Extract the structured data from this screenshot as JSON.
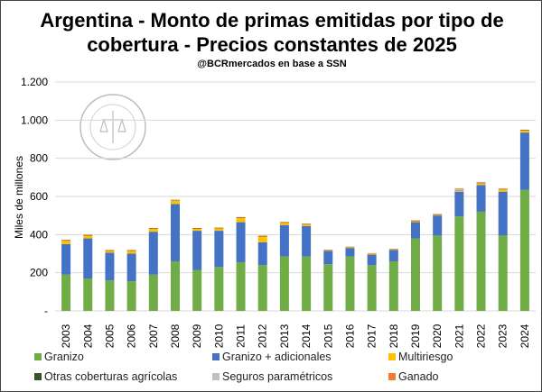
{
  "chart_data": {
    "type": "bar",
    "stacked": true,
    "title": "Argentina - Monto de primas emitidas  por tipo de cobertura - Precios constantes de 2025",
    "title_lines": [
      "Argentina - Monto de primas emitidas  por tipo de",
      "cobertura - Precios constantes de 2025"
    ],
    "subtitle": "@BCRmercados en base a SSN",
    "ylabel": "Miles de millones",
    "xlabel": "",
    "ylim": [
      0,
      1200
    ],
    "yticks": [
      0,
      200,
      400,
      600,
      800,
      1000,
      1200
    ],
    "ytick_labels": [
      "-",
      "200",
      "400",
      "600",
      "800",
      "1.000",
      "1.200"
    ],
    "grid": true,
    "legend_position": "bottom",
    "watermark": "BOLSA DE COMERCIO DE ROSARIO",
    "categories": [
      "2003",
      "2004",
      "2005",
      "2006",
      "2007",
      "2008",
      "2009",
      "2010",
      "2011",
      "2012",
      "2013",
      "2014",
      "2015",
      "2016",
      "2017",
      "2018",
      "2019",
      "2020",
      "2021",
      "2022",
      "2023",
      "2024"
    ],
    "series": [
      {
        "name": "Granizo",
        "color": "#70ad47",
        "values": [
          190,
          170,
          160,
          155,
          190,
          260,
          215,
          230,
          255,
          240,
          285,
          285,
          245,
          285,
          240,
          260,
          380,
          395,
          495,
          520,
          395,
          635
        ]
      },
      {
        "name": "Granizo + adicionales",
        "color": "#4472c4",
        "values": [
          160,
          210,
          145,
          145,
          225,
          300,
          205,
          190,
          210,
          120,
          165,
          160,
          70,
          45,
          55,
          60,
          85,
          105,
          130,
          140,
          230,
          300
        ]
      },
      {
        "name": "Multiriesgo",
        "color": "#ffc000",
        "values": [
          18,
          15,
          10,
          15,
          15,
          18,
          10,
          12,
          22,
          30,
          12,
          8,
          3,
          4,
          5,
          3,
          5,
          3,
          5,
          8,
          12,
          10
        ]
      },
      {
        "name": "Otras coberturas agrícolas",
        "color": "#375623",
        "values": [
          2,
          2,
          2,
          2,
          2,
          2,
          2,
          2,
          2,
          2,
          2,
          2,
          1,
          1,
          1,
          1,
          2,
          2,
          2,
          2,
          2,
          2
        ]
      },
      {
        "name": "Seguros paramétricos",
        "color": "#bfbfbf",
        "values": [
          0,
          0,
          0,
          0,
          0,
          0,
          0,
          0,
          0,
          0,
          0,
          0,
          0,
          0,
          0,
          0,
          0,
          0,
          8,
          3,
          0,
          0
        ]
      },
      {
        "name": "Ganado",
        "color": "#ed7d31",
        "values": [
          3,
          3,
          3,
          3,
          3,
          3,
          3,
          3,
          3,
          3,
          3,
          3,
          2,
          2,
          2,
          2,
          3,
          3,
          3,
          3,
          3,
          3
        ]
      }
    ]
  }
}
